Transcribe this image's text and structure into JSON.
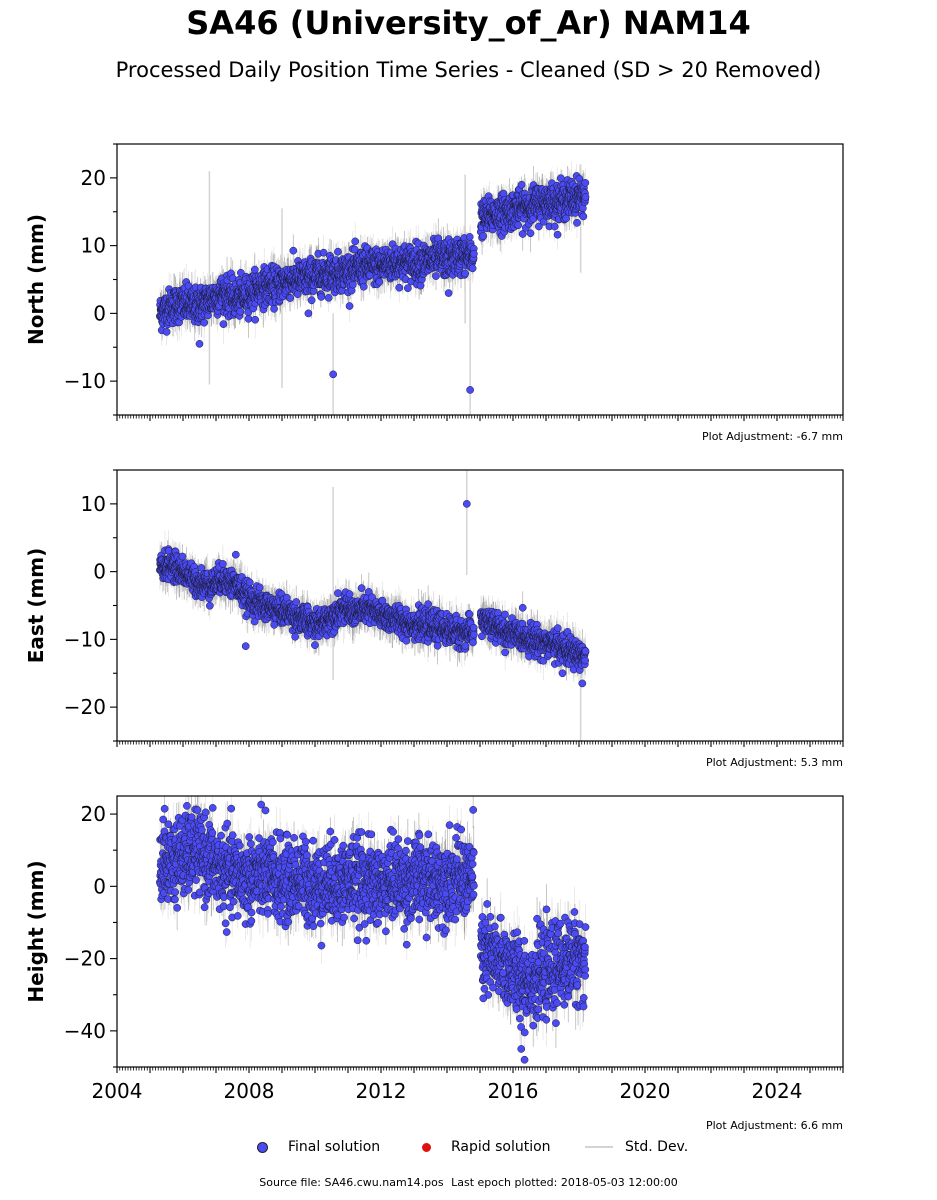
{
  "figure": {
    "title": "SA46 (University_of_Ar) NAM14",
    "subtitle": "Processed Daily Position Time Series - Cleaned (SD > 20 Removed)"
  },
  "legend": {
    "final_label": "Final solution",
    "rapid_label": "Rapid solution",
    "std_label": "Std. Dev."
  },
  "footer": {
    "source": "Source file: SA46.cwu.nam14.pos",
    "last_epoch": "Last epoch plotted: 2018-05-03 12:00:00"
  },
  "colors": {
    "final": "#4b4bf5",
    "final_edge": "#1a1a33",
    "rapid": "#e01010",
    "std": "#d4d4d4",
    "std_dense": "#8a8a8a"
  },
  "chart_data": [
    {
      "type": "scatter",
      "component": "north",
      "ylabel": "North (mm)",
      "xlim": [
        2004,
        2026
      ],
      "ylim": [
        -15,
        25
      ],
      "x_ticks": [
        2004,
        2008,
        2012,
        2016,
        2020,
        2024
      ],
      "y_ticks": [
        -10,
        0,
        10,
        20
      ],
      "adjustment": "Plot Adjustment: -6.7 mm",
      "series": [
        {
          "x": [
            2005.3,
            2005.6,
            2006.0,
            2006.4,
            2006.8,
            2007.2,
            2007.6,
            2008.0,
            2008.4,
            2008.8,
            2009.2,
            2009.6,
            2010.0,
            2010.4,
            2010.8,
            2011.2,
            2011.6,
            2012.0,
            2012.4,
            2012.8,
            2013.2,
            2013.6,
            2014.0,
            2014.4,
            2014.8,
            2015.0,
            2015.4,
            2015.8,
            2016.2,
            2016.6,
            2017.0,
            2017.4,
            2017.8,
            2018.2
          ],
          "y": [
            0,
            1,
            1.5,
            1,
            2,
            3,
            2,
            3,
            4,
            4,
            5,
            5,
            5.5,
            6,
            6,
            6.5,
            7,
            7,
            7.5,
            7.5,
            7.5,
            8,
            8,
            8.5,
            8.5,
            14,
            14.5,
            15,
            15.5,
            16,
            16.5,
            16.5,
            17,
            17.5
          ]
        }
      ],
      "outliers": [
        {
          "x": 2010.55,
          "y": -9
        },
        {
          "x": 2014.7,
          "y": -11.3
        },
        {
          "x": 2014.05,
          "y": 3
        },
        {
          "x": 2009.8,
          "y": 0
        },
        {
          "x": 2006.5,
          "y": -4.5
        }
      ],
      "long_std": [
        {
          "x": 2006.8,
          "y0": -10.5,
          "y1": 21
        },
        {
          "x": 2009.0,
          "y0": -11,
          "y1": 15.5
        },
        {
          "x": 2010.55,
          "y0": -15,
          "y1": 0
        },
        {
          "x": 2014.55,
          "y0": -1.5,
          "y1": 20.5
        },
        {
          "x": 2014.7,
          "y0": -15,
          "y1": 8
        },
        {
          "x": 2018.05,
          "y0": 6,
          "y1": 22
        }
      ],
      "noise_sd": 1.3,
      "err_len": 2
    },
    {
      "type": "scatter",
      "component": "east",
      "ylabel": "East (mm)",
      "xlim": [
        2004,
        2026
      ],
      "ylim": [
        -25,
        15
      ],
      "x_ticks": [
        2004,
        2008,
        2012,
        2016,
        2020,
        2024
      ],
      "y_ticks": [
        -20,
        -10,
        0,
        10
      ],
      "adjustment": "Plot Adjustment: 5.3 mm",
      "series": [
        {
          "x": [
            2005.3,
            2005.6,
            2006.0,
            2006.4,
            2006.8,
            2007.2,
            2007.6,
            2008.0,
            2008.4,
            2008.8,
            2009.2,
            2009.6,
            2010.0,
            2010.4,
            2010.8,
            2011.2,
            2011.6,
            2012.0,
            2012.4,
            2012.8,
            2013.2,
            2013.6,
            2014.0,
            2014.4,
            2014.8,
            2015.0,
            2015.4,
            2015.8,
            2016.2,
            2016.6,
            2017.0,
            2017.4,
            2017.8,
            2018.2
          ],
          "y": [
            0.5,
            1,
            0,
            -1.5,
            -2,
            -1,
            -2,
            -4,
            -5,
            -5.5,
            -6,
            -7,
            -8,
            -7,
            -5.5,
            -6,
            -5.5,
            -6.5,
            -7,
            -7.5,
            -8,
            -8,
            -8.5,
            -9,
            -9,
            -7,
            -8,
            -9,
            -9.5,
            -10,
            -10.5,
            -11,
            -12,
            -12.5
          ]
        }
      ],
      "outliers": [
        {
          "x": 2014.6,
          "y": 10
        },
        {
          "x": 2007.9,
          "y": -11
        },
        {
          "x": 2018.1,
          "y": -16.5
        },
        {
          "x": 2017.5,
          "y": -15
        },
        {
          "x": 2007.6,
          "y": 2.5
        }
      ],
      "long_std": [
        {
          "x": 2010.55,
          "y0": -16,
          "y1": 12.5
        },
        {
          "x": 2014.6,
          "y0": -0.5,
          "y1": 15
        },
        {
          "x": 2018.05,
          "y0": -25,
          "y1": -10
        }
      ],
      "noise_sd": 1.0,
      "err_len": 2
    },
    {
      "type": "scatter",
      "component": "height",
      "ylabel": "Height (mm)",
      "xlim": [
        2004,
        2026
      ],
      "ylim": [
        -50,
        25
      ],
      "x_ticks": [
        2004,
        2008,
        2012,
        2016,
        2020,
        2024
      ],
      "y_ticks": [
        -40,
        -20,
        0,
        20
      ],
      "adjustment": "Plot Adjustment: 6.6 mm",
      "series": [
        {
          "x": [
            2005.3,
            2005.6,
            2006.0,
            2006.4,
            2006.8,
            2007.2,
            2007.6,
            2008.0,
            2008.4,
            2008.8,
            2009.2,
            2009.6,
            2010.0,
            2010.4,
            2010.8,
            2011.2,
            2011.6,
            2012.0,
            2012.4,
            2012.8,
            2013.2,
            2013.6,
            2014.0,
            2014.4,
            2014.8,
            2015.0,
            2015.4,
            2015.8,
            2016.2,
            2016.6,
            2017.0,
            2017.4,
            2017.8,
            2018.2
          ],
          "y": [
            6,
            7,
            8,
            10,
            7,
            4,
            3,
            2,
            3,
            2,
            1,
            2,
            0,
            1,
            1,
            2,
            1,
            0,
            2,
            1,
            2,
            1,
            2,
            2,
            3,
            -18,
            -20,
            -22,
            -25,
            -26,
            -24,
            -22,
            -20,
            -20
          ]
        }
      ],
      "outliers": [
        {
          "x": 2016.35,
          "y": -48
        },
        {
          "x": 2016.25,
          "y": -45
        },
        {
          "x": 2008.5,
          "y": 21
        },
        {
          "x": 2005.4,
          "y": 18.5
        },
        {
          "x": 2015.1,
          "y": -31
        }
      ],
      "long_std": [],
      "noise_sd": 5.5,
      "err_len": 5
    }
  ]
}
